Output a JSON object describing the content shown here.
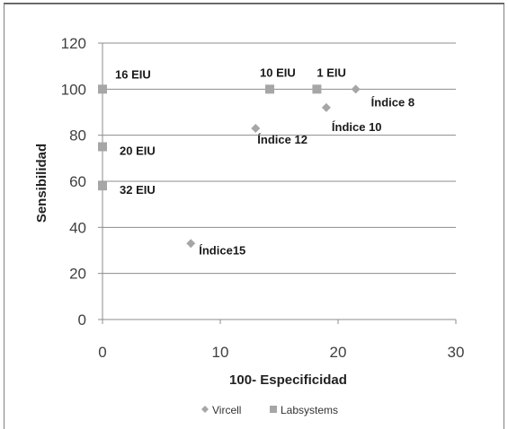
{
  "chart_data": {
    "type": "scatter",
    "xlabel": "100- Especificidad",
    "ylabel": "Sensibilidad",
    "xlim": [
      0,
      30
    ],
    "ylim": [
      0,
      120
    ],
    "x_ticks": [
      0,
      10,
      20,
      30
    ],
    "y_ticks": [
      0,
      20,
      40,
      60,
      80,
      100,
      120
    ],
    "x_tick_labels": [
      "0",
      "10",
      "20",
      "30"
    ],
    "y_tick_labels": [
      "0",
      "20",
      "40",
      "60",
      "80",
      "100",
      "120"
    ],
    "grid": "horizontal",
    "legend_position": "bottom",
    "series": [
      {
        "name": "Vircell",
        "marker": "diamond",
        "color": "#a6a6a6",
        "points": [
          {
            "x": 7.5,
            "y": 33,
            "label": "Índice15"
          },
          {
            "x": 13,
            "y": 83,
            "label": "Índice 12"
          },
          {
            "x": 19,
            "y": 92,
            "label": "Índice 10"
          },
          {
            "x": 21.5,
            "y": 100,
            "label": "Índice 8"
          }
        ]
      },
      {
        "name": "Labsystems",
        "marker": "square",
        "color": "#a6a6a6",
        "points": [
          {
            "x": 0,
            "y": 100,
            "label": "16 EIU"
          },
          {
            "x": 0,
            "y": 75,
            "label": "20 EIU"
          },
          {
            "x": 0,
            "y": 58,
            "label": "32 EIU"
          },
          {
            "x": 14.2,
            "y": 100,
            "label": "10 EIU"
          },
          {
            "x": 18.2,
            "y": 100,
            "label": "1 EIU"
          }
        ]
      }
    ]
  }
}
